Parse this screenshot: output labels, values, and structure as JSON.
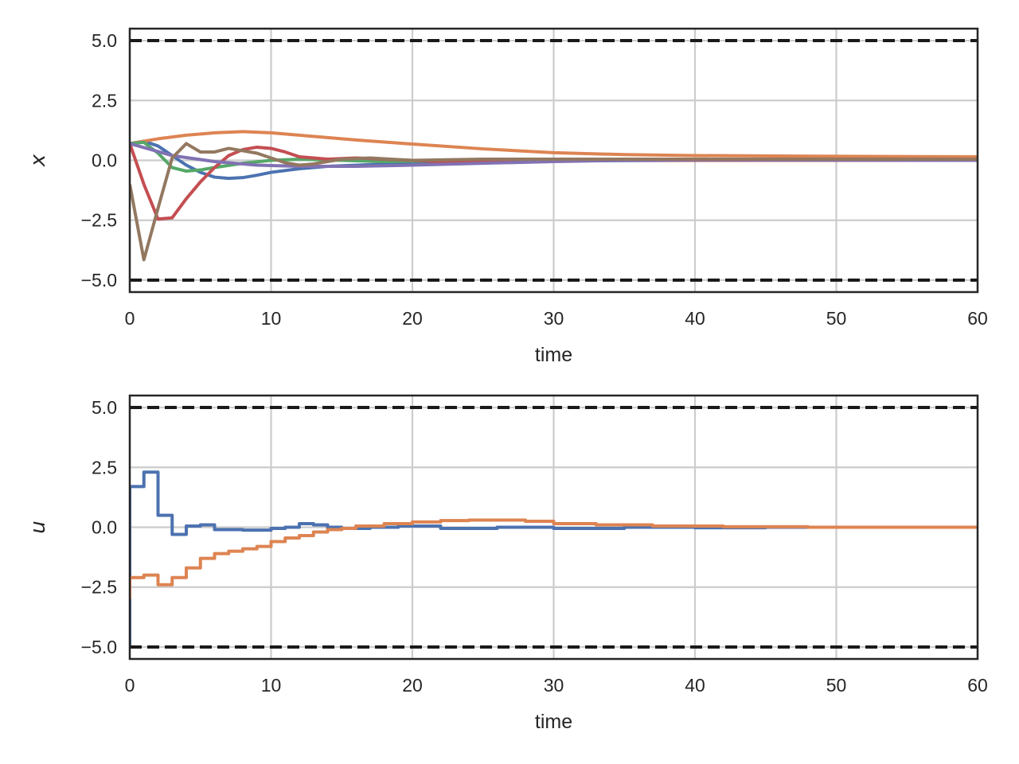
{
  "chart_data": [
    {
      "type": "line",
      "title": "",
      "xlabel": "time",
      "ylabel": "x",
      "xlim": [
        0,
        60
      ],
      "ylim": [
        -5.5,
        5.5
      ],
      "x_ticks": [
        "0",
        "10",
        "20",
        "30",
        "40",
        "50",
        "60"
      ],
      "y_ticks": [
        "5.0",
        "2.5",
        "0.0",
        "−2.5",
        "−5.0"
      ],
      "grid": true,
      "legend": "none",
      "bounds": [
        5.0,
        -5.0
      ],
      "bounds_color": "#1a1a1a",
      "series": [
        {
          "color": "#4c72b0",
          "points": [
            [
              0,
              0.7
            ],
            [
              1,
              0.8
            ],
            [
              2,
              0.6
            ],
            [
              3,
              0.2
            ],
            [
              4,
              -0.2
            ],
            [
              5,
              -0.5
            ],
            [
              6,
              -0.7
            ],
            [
              7,
              -0.75
            ],
            [
              8,
              -0.72
            ],
            [
              9,
              -0.62
            ],
            [
              10,
              -0.5
            ],
            [
              12,
              -0.35
            ],
            [
              14,
              -0.25
            ],
            [
              17,
              -0.18
            ],
            [
              20,
              -0.12
            ],
            [
              25,
              -0.05
            ],
            [
              30,
              -0.02
            ],
            [
              40,
              0.0
            ],
            [
              60,
              0.0
            ]
          ]
        },
        {
          "color": "#dd8452",
          "points": [
            [
              0,
              0.7
            ],
            [
              2,
              0.9
            ],
            [
              4,
              1.05
            ],
            [
              6,
              1.15
            ],
            [
              8,
              1.2
            ],
            [
              10,
              1.15
            ],
            [
              13,
              1.0
            ],
            [
              16,
              0.85
            ],
            [
              20,
              0.68
            ],
            [
              25,
              0.48
            ],
            [
              30,
              0.32
            ],
            [
              35,
              0.24
            ],
            [
              40,
              0.2
            ],
            [
              50,
              0.17
            ],
            [
              60,
              0.15
            ]
          ]
        },
        {
          "color": "#55a868",
          "points": [
            [
              0,
              0.7
            ],
            [
              1,
              0.75
            ],
            [
              2,
              0.3
            ],
            [
              3,
              -0.3
            ],
            [
              4,
              -0.45
            ],
            [
              5,
              -0.4
            ],
            [
              6,
              -0.3
            ],
            [
              8,
              -0.12
            ],
            [
              10,
              0.0
            ],
            [
              12,
              0.05
            ],
            [
              15,
              0.0
            ],
            [
              18,
              -0.05
            ],
            [
              22,
              -0.02
            ],
            [
              30,
              0.0
            ],
            [
              60,
              0.0
            ]
          ]
        },
        {
          "color": "#c44e52",
          "points": [
            [
              0,
              0.7
            ],
            [
              1,
              -1.0
            ],
            [
              2,
              -2.45
            ],
            [
              3,
              -2.4
            ],
            [
              4,
              -1.6
            ],
            [
              5,
              -0.9
            ],
            [
              6,
              -0.3
            ],
            [
              7,
              0.2
            ],
            [
              8,
              0.45
            ],
            [
              9,
              0.55
            ],
            [
              10,
              0.5
            ],
            [
              11,
              0.35
            ],
            [
              12,
              0.15
            ],
            [
              14,
              0.05
            ],
            [
              16,
              0.1
            ],
            [
              18,
              0.05
            ],
            [
              22,
              -0.05
            ],
            [
              30,
              0.0
            ],
            [
              60,
              0.0
            ]
          ]
        },
        {
          "color": "#8172b3",
          "points": [
            [
              0,
              0.7
            ],
            [
              3,
              0.2
            ],
            [
              6,
              -0.05
            ],
            [
              9,
              -0.2
            ],
            [
              12,
              -0.25
            ],
            [
              16,
              -0.25
            ],
            [
              20,
              -0.2
            ],
            [
              25,
              -0.12
            ],
            [
              30,
              -0.05
            ],
            [
              35,
              0.0
            ],
            [
              40,
              0.02
            ],
            [
              60,
              0.0
            ]
          ]
        },
        {
          "color": "#937860",
          "points": [
            [
              0,
              -1.0
            ],
            [
              1,
              -4.15
            ],
            [
              2,
              -2.0
            ],
            [
              3,
              0.1
            ],
            [
              4,
              0.7
            ],
            [
              5,
              0.35
            ],
            [
              6,
              0.35
            ],
            [
              7,
              0.5
            ],
            [
              8,
              0.4
            ],
            [
              9,
              0.3
            ],
            [
              10,
              0.1
            ],
            [
              11,
              -0.1
            ],
            [
              12,
              -0.2
            ],
            [
              13,
              -0.15
            ],
            [
              15,
              0.05
            ],
            [
              17,
              0.1
            ],
            [
              20,
              0.0
            ],
            [
              25,
              0.05
            ],
            [
              30,
              0.05
            ],
            [
              40,
              0.05
            ],
            [
              60,
              0.05
            ]
          ]
        }
      ]
    },
    {
      "type": "line",
      "title": "",
      "xlabel": "time",
      "ylabel": "u",
      "xlim": [
        0,
        60
      ],
      "ylim": [
        -5.5,
        5.5
      ],
      "x_ticks": [
        "0",
        "10",
        "20",
        "30",
        "40",
        "50",
        "60"
      ],
      "y_ticks": [
        "5.0",
        "2.5",
        "0.0",
        "−2.5",
        "−5.0"
      ],
      "grid": true,
      "legend": "none",
      "bounds": [
        5.0,
        -5.0
      ],
      "bounds_color": "#1a1a1a",
      "series": [
        {
          "color": "#4c72b0",
          "step": true,
          "points": [
            [
              0,
              -5.0
            ],
            [
              0,
              1.7
            ],
            [
              1,
              2.3
            ],
            [
              2,
              0.5
            ],
            [
              3,
              -0.3
            ],
            [
              4,
              0.05
            ],
            [
              5,
              0.1
            ],
            [
              6,
              -0.1
            ],
            [
              7,
              -0.1
            ],
            [
              8,
              -0.12
            ],
            [
              9,
              -0.12
            ],
            [
              10,
              -0.05
            ],
            [
              11,
              0.0
            ],
            [
              12,
              0.15
            ],
            [
              13,
              0.1
            ],
            [
              14,
              0.0
            ],
            [
              15,
              -0.05
            ],
            [
              17,
              0.0
            ],
            [
              19,
              0.05
            ],
            [
              22,
              -0.05
            ],
            [
              26,
              0.0
            ],
            [
              30,
              -0.05
            ],
            [
              35,
              0.0
            ],
            [
              40,
              -0.02
            ],
            [
              45,
              0.0
            ],
            [
              50,
              0.0
            ],
            [
              60,
              0.0
            ]
          ]
        },
        {
          "color": "#dd8452",
          "step": true,
          "points": [
            [
              0,
              -3.0
            ],
            [
              0,
              -2.1
            ],
            [
              1,
              -2.0
            ],
            [
              2,
              -2.4
            ],
            [
              3,
              -2.1
            ],
            [
              4,
              -1.7
            ],
            [
              5,
              -1.3
            ],
            [
              6,
              -1.1
            ],
            [
              7,
              -1.0
            ],
            [
              8,
              -0.9
            ],
            [
              9,
              -0.8
            ],
            [
              10,
              -0.6
            ],
            [
              11,
              -0.45
            ],
            [
              12,
              -0.35
            ],
            [
              13,
              -0.2
            ],
            [
              14,
              -0.1
            ],
            [
              15,
              -0.05
            ],
            [
              16,
              0.05
            ],
            [
              18,
              0.15
            ],
            [
              20,
              0.22
            ],
            [
              22,
              0.28
            ],
            [
              24,
              0.3
            ],
            [
              26,
              0.3
            ],
            [
              28,
              0.25
            ],
            [
              30,
              0.15
            ],
            [
              33,
              0.1
            ],
            [
              37,
              0.05
            ],
            [
              42,
              0.02
            ],
            [
              48,
              0.0
            ],
            [
              60,
              0.0
            ]
          ]
        }
      ]
    }
  ]
}
